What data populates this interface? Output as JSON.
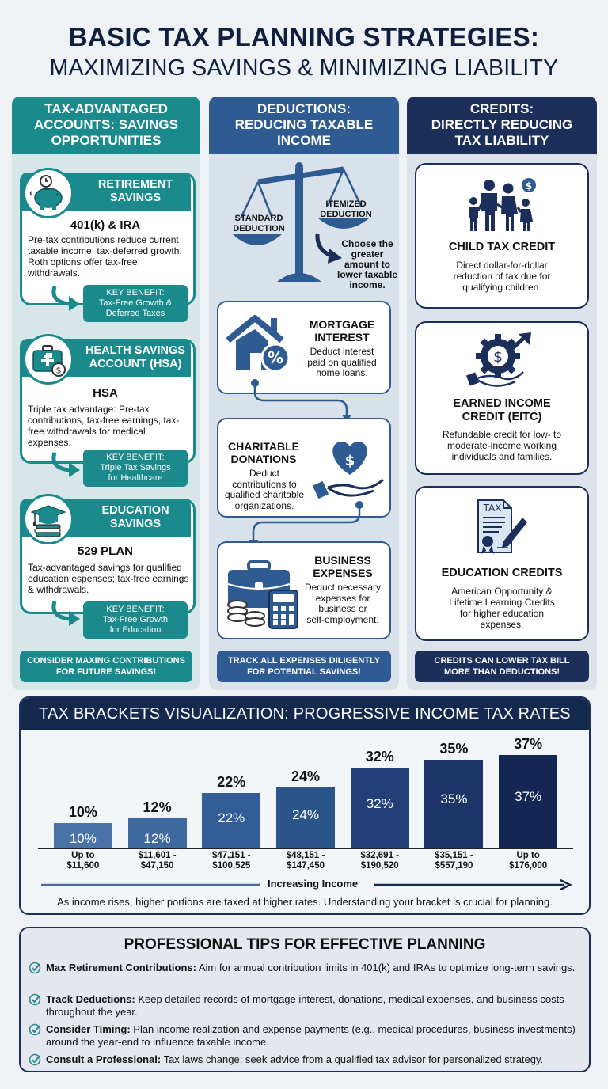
{
  "title": {
    "line1": "BASIC TAX PLANNING STRATEGIES:",
    "line2": "MAXIMIZING SAVINGS & MINIMIZING LIABILITY"
  },
  "colors": {
    "teal": "#1a8a8c",
    "blue": "#2e5b92",
    "navy": "#1c2f5a",
    "title": "#0f1f3d"
  },
  "columns": [
    {
      "heading": "TAX-ADVANTAGED\nACCOUNTS: SAVINGS\nOPPORTUNITIES",
      "footer": "CONSIDER MAXING CONTRIBUTIONS\nFOR FUTURE SAVINGS!",
      "items": [
        {
          "icon": "piggy-bank-clock-icon",
          "title": "RETIREMENT\nSAVINGS",
          "subtitle": "401(k) & IRA",
          "description": "Pre-tax contributions reduce current taxable income; tax-deferred growth. Roth options offer tax-free withdrawals.",
          "benefit": "KEY BENEFIT:\nTax-Free Growth &\nDeferred Taxes"
        },
        {
          "icon": "medical-kit-dollar-icon",
          "title": "HEALTH SAVINGS\nACCOUNT (HSA)",
          "subtitle": "HSA",
          "description": "Triple tax advantage: Pre-tax contributions, tax-free earnings, tax-free withdrawals for medical expenses.",
          "benefit": "KEY BENEFIT:\nTriple Tax Savings\nfor Healthcare"
        },
        {
          "icon": "graduation-cap-books-icon",
          "title": "EDUCATION\nSAVINGS",
          "subtitle": "529 PLAN",
          "description": "Tax-advantaged savings for qualified education espenses; tax-free earnings & withdrawals.",
          "benefit": "KEY BENEFIT:\nTax-Free Growth\nfor Education"
        }
      ]
    },
    {
      "heading": "DEDUCTIONS:\nREDUCING TAXABLE\nINCOME",
      "footer": "TRACK ALL EXPENSES DILIGENTLY\nFOR POTENTIAL SAVINGS!",
      "scale": {
        "left_label": "STANDARD\nDEDUCTION",
        "right_label": "ITEMIZED\nDEDUCTION",
        "note": "Choose the\ngreater\namount to\nlower taxable\nincome."
      },
      "items": [
        {
          "icon": "house-percent-icon",
          "title": "MORTGAGE\nINTEREST",
          "description": "Deduct interest\npaid on qualified\nhome loans."
        },
        {
          "icon": "heart-dollar-hand-icon",
          "title": "CHARITABLE\nDONATIONS",
          "description": "Deduct\ncontributions to\nqualified charitable\norganizations."
        },
        {
          "icon": "briefcase-calculator-coins-icon",
          "title": "BUSINESS\nEXPENSES",
          "description": "Deduct necessary\nexpenses for\nbusiness or\nself-employment."
        }
      ]
    },
    {
      "heading": "CREDITS:\nDIRECTLY REDUCING\nTAX LIABILITY",
      "footer": "CREDITS CAN LOWER TAX BILL\nMORE THAN DEDUCTIONS!",
      "items": [
        {
          "icon": "family-dollar-icon",
          "title": "CHILD TAX CREDIT",
          "description": "Direct dollar-for-dollar\nreduction of tax due for\nqualifying children."
        },
        {
          "icon": "gear-dollar-hand-arrow-icon",
          "title": "EARNED INCOME\nCREDIT (EITC)",
          "description": "Refundable credit for low- to\nmoderate-income working\nindividuals and families."
        },
        {
          "icon": "tax-document-pen-icon",
          "title": "EDUCATION CREDITS",
          "description": "American Opportunity &\nLifetime Learning Credits\nfor higher education\nexpenses.",
          "icon_text": "TAX"
        }
      ]
    }
  ],
  "brackets": {
    "heading": "TAX BRACKETS VISUALIZATION: PROGRESSIVE INCOME TAX RATES",
    "axis_label": "Increasing Income",
    "note": "As income rises, higher portions are taxed at higher rates. Understanding your bracket is crucial for planning."
  },
  "chart_data": {
    "type": "bar",
    "title": "TAX BRACKETS VISUALIZATION: PROGRESSIVE INCOME TAX RATES",
    "xlabel": "Increasing Income",
    "ylabel": "",
    "categories": [
      "Up to\n$11,600",
      "$11,601 -\n$47,150",
      "$47,151 -\n$100,525",
      "$48,151 -\n$147,450",
      "$32,691 -\n$190,520",
      "$35,151 -\n$557,190",
      "Up to\n$176,000"
    ],
    "values": [
      10,
      12,
      22,
      24,
      32,
      35,
      37
    ],
    "labels": [
      "10%",
      "12%",
      "22%",
      "24%",
      "32%",
      "35%",
      "37%"
    ],
    "colors": [
      "#4a74a8",
      "#3f6aa0",
      "#335d96",
      "#2b548b",
      "#233f78",
      "#1d3468",
      "#142654"
    ],
    "ylim": [
      0,
      40
    ],
    "grid": false,
    "legend": "none"
  },
  "tips": {
    "heading": "PROFESSIONAL TIPS FOR EFFECTIVE PLANNING",
    "items": [
      {
        "bold": "Max Retirement Contributions:",
        "text": " Aim for annual contribution limits in 401(k) and IRAs to optimize long-term savings."
      },
      {
        "bold": "Track Deductions:",
        "text": " Keep detailed records of mortgage interest, donations, medical expenses, and business costs throughout the year."
      },
      {
        "bold": "Consider Timing:",
        "text": " Plan income realization and expense payments (e.g., medical procedures, business investments) around the year-end to influence taxable income."
      },
      {
        "bold": "Consult a Professional:",
        "text": " Tax laws change; seek advice from a qualified tax advisor for personalized strategy."
      }
    ]
  }
}
